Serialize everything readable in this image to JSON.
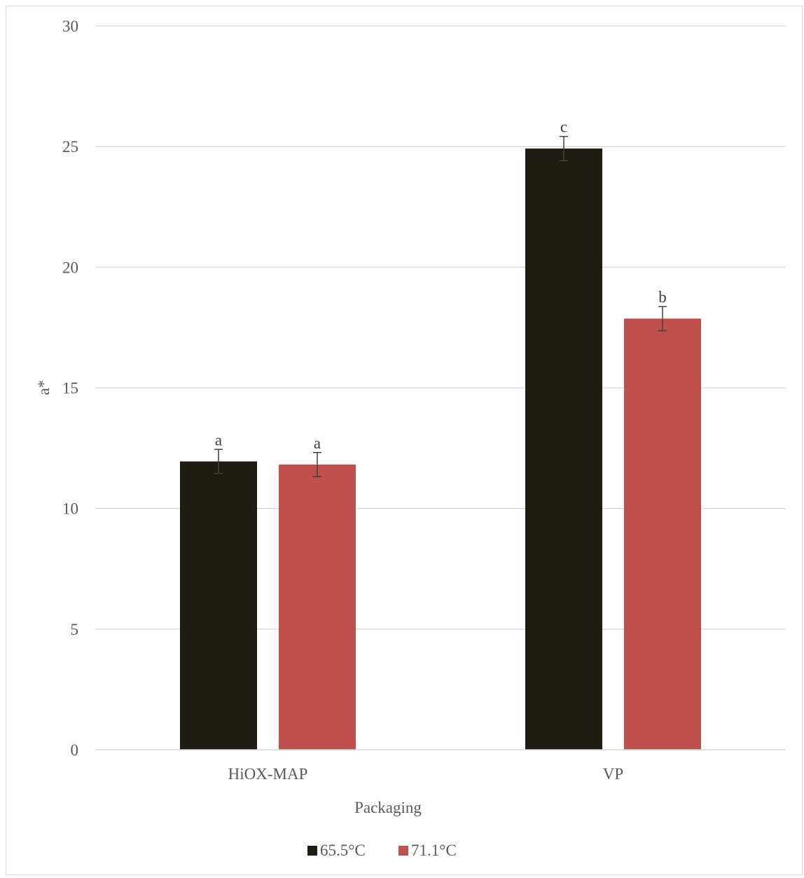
{
  "chart_data": {
    "type": "bar",
    "categories": [
      "HiOX-MAP",
      "VP"
    ],
    "series": [
      {
        "name": "65.5°C",
        "color": "#1f1d12",
        "values": [
          11.95,
          24.92
        ],
        "error": [
          0.5,
          0.5
        ],
        "labels": [
          "a",
          "c"
        ]
      },
      {
        "name": "71.1°C",
        "color": "#c0504d",
        "values": [
          11.82,
          17.87
        ],
        "error": [
          0.5,
          0.5
        ],
        "labels": [
          "a",
          "b"
        ]
      }
    ],
    "xlabel": "Packaging",
    "ylabel": "a*",
    "ylim": [
      0,
      30
    ],
    "yticks": [
      0,
      5,
      10,
      15,
      20,
      25,
      30
    ],
    "grid": true,
    "legend": "bottom"
  }
}
